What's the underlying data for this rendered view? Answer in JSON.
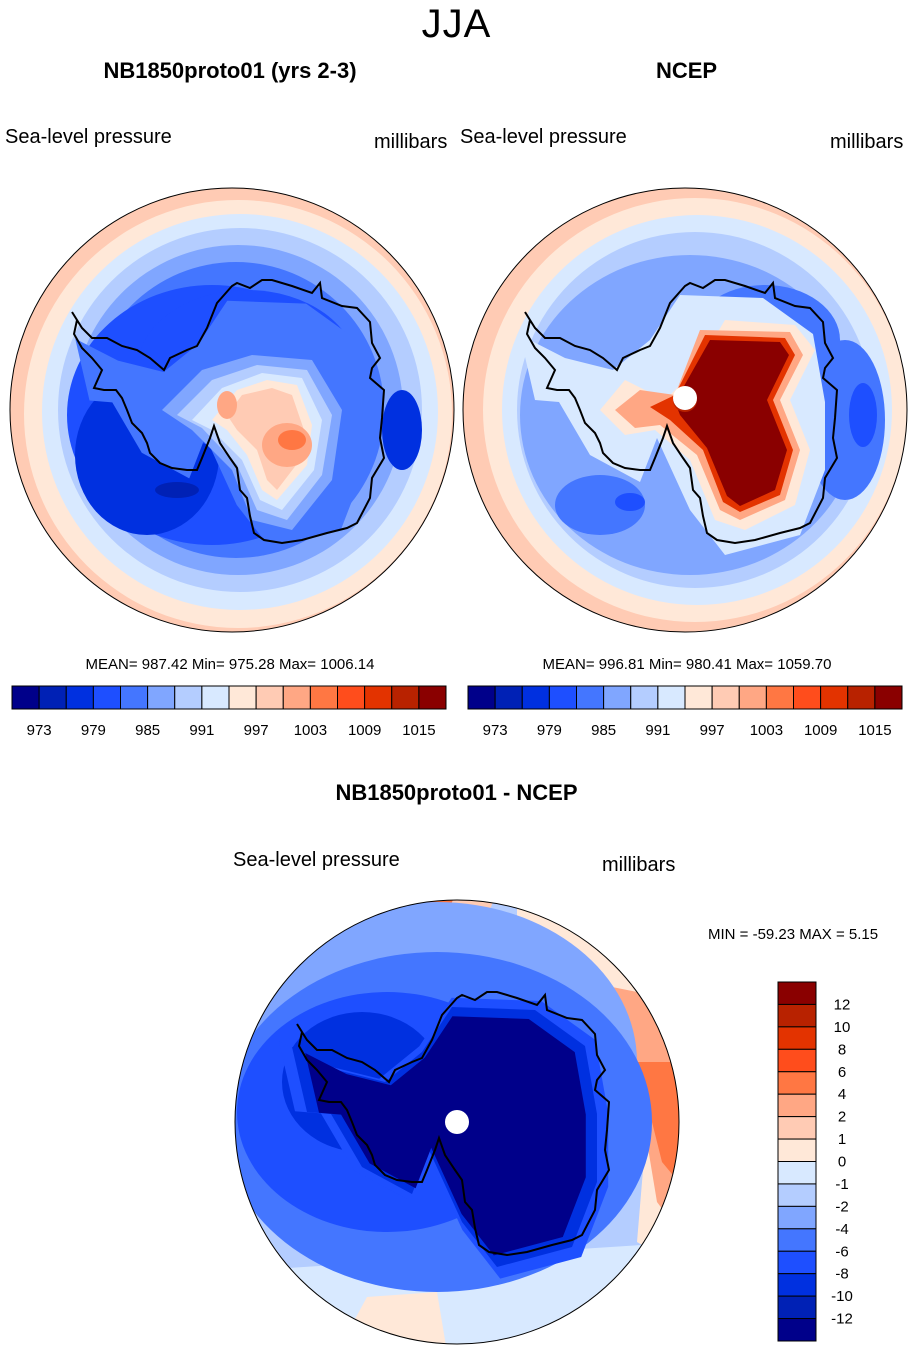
{
  "figure": {
    "title": "JJA"
  },
  "palette": [
    "#00008a",
    "#0021b5",
    "#0030e0",
    "#1e4fff",
    "#4476ff",
    "#80a6ff",
    "#b4cdff",
    "#d8e9ff",
    "#ffe8d8",
    "#ffcbb4",
    "#ffa784",
    "#ff7743",
    "#ff4d1c",
    "#e33300",
    "#b82200",
    "#8a0000"
  ],
  "chart_data": [
    {
      "type": "heatmap",
      "projection": "south-polar-stereographic",
      "title": "NB1850proto01 (yrs 2-3)",
      "left_label": "Sea-level pressure",
      "right_label": "millibars",
      "stats": {
        "mean": 987.42,
        "min": 975.28,
        "max": 1006.14
      },
      "stats_text": "MEAN= 987.42  Min= 975.28  Max= 1006.14",
      "colorbar": {
        "orientation": "horizontal",
        "levels": [
          973,
          976,
          979,
          982,
          985,
          988,
          991,
          994,
          997,
          1000,
          1003,
          1006,
          1009,
          1012,
          1015
        ],
        "tick_labels": [
          "973",
          "979",
          "985",
          "991",
          "997",
          "1003",
          "1009",
          "1015"
        ]
      },
      "description": "Low pressure ring (975-985 mb) around Antarctica, higher pressure (~997-1006) over East Antarctic interior and at mid-latitudes"
    },
    {
      "type": "heatmap",
      "projection": "south-polar-stereographic",
      "title": "NCEP",
      "left_label": "Sea-level pressure",
      "right_label": "millibars",
      "stats": {
        "mean": 996.81,
        "min": 980.41,
        "max": 1059.7
      },
      "stats_text": "MEAN= 996.81  Min= 980.41  Max= 1059.70",
      "colorbar": {
        "orientation": "horizontal",
        "levels": [
          973,
          976,
          979,
          982,
          985,
          988,
          991,
          994,
          997,
          1000,
          1003,
          1006,
          1009,
          1012,
          1015
        ],
        "tick_labels": [
          "973",
          "979",
          "985",
          "991",
          "997",
          "1003",
          "1009",
          "1015"
        ]
      },
      "description": "Very high reduced SLP (>1015 mb) over Antarctic plateau, missing data at pole, ~985-991 mb circumpolar trough"
    },
    {
      "type": "heatmap",
      "projection": "south-polar-stereographic",
      "title": "NB1850proto01 - NCEP",
      "left_label": "Sea-level pressure",
      "right_label": "millibars",
      "stats": {
        "min": -59.23,
        "max": 5.15
      },
      "stats_text": "MIN = -59.23 MAX =   5.15",
      "colorbar": {
        "orientation": "vertical",
        "levels": [
          -12,
          -10,
          -8,
          -6,
          -4,
          -2,
          -1,
          0,
          1,
          2,
          4,
          6,
          8,
          10,
          12
        ],
        "tick_labels": [
          "12",
          "10",
          "8",
          "6",
          "4",
          "2",
          "1",
          "0",
          "-1",
          "-2",
          "-4",
          "-6",
          "-8",
          "-10",
          "-12"
        ]
      },
      "description": "Large negative difference (< -12) over Antarctic continent, moderate negatives over Southern Ocean, positives (2-6) in mid-latitude bands"
    }
  ]
}
